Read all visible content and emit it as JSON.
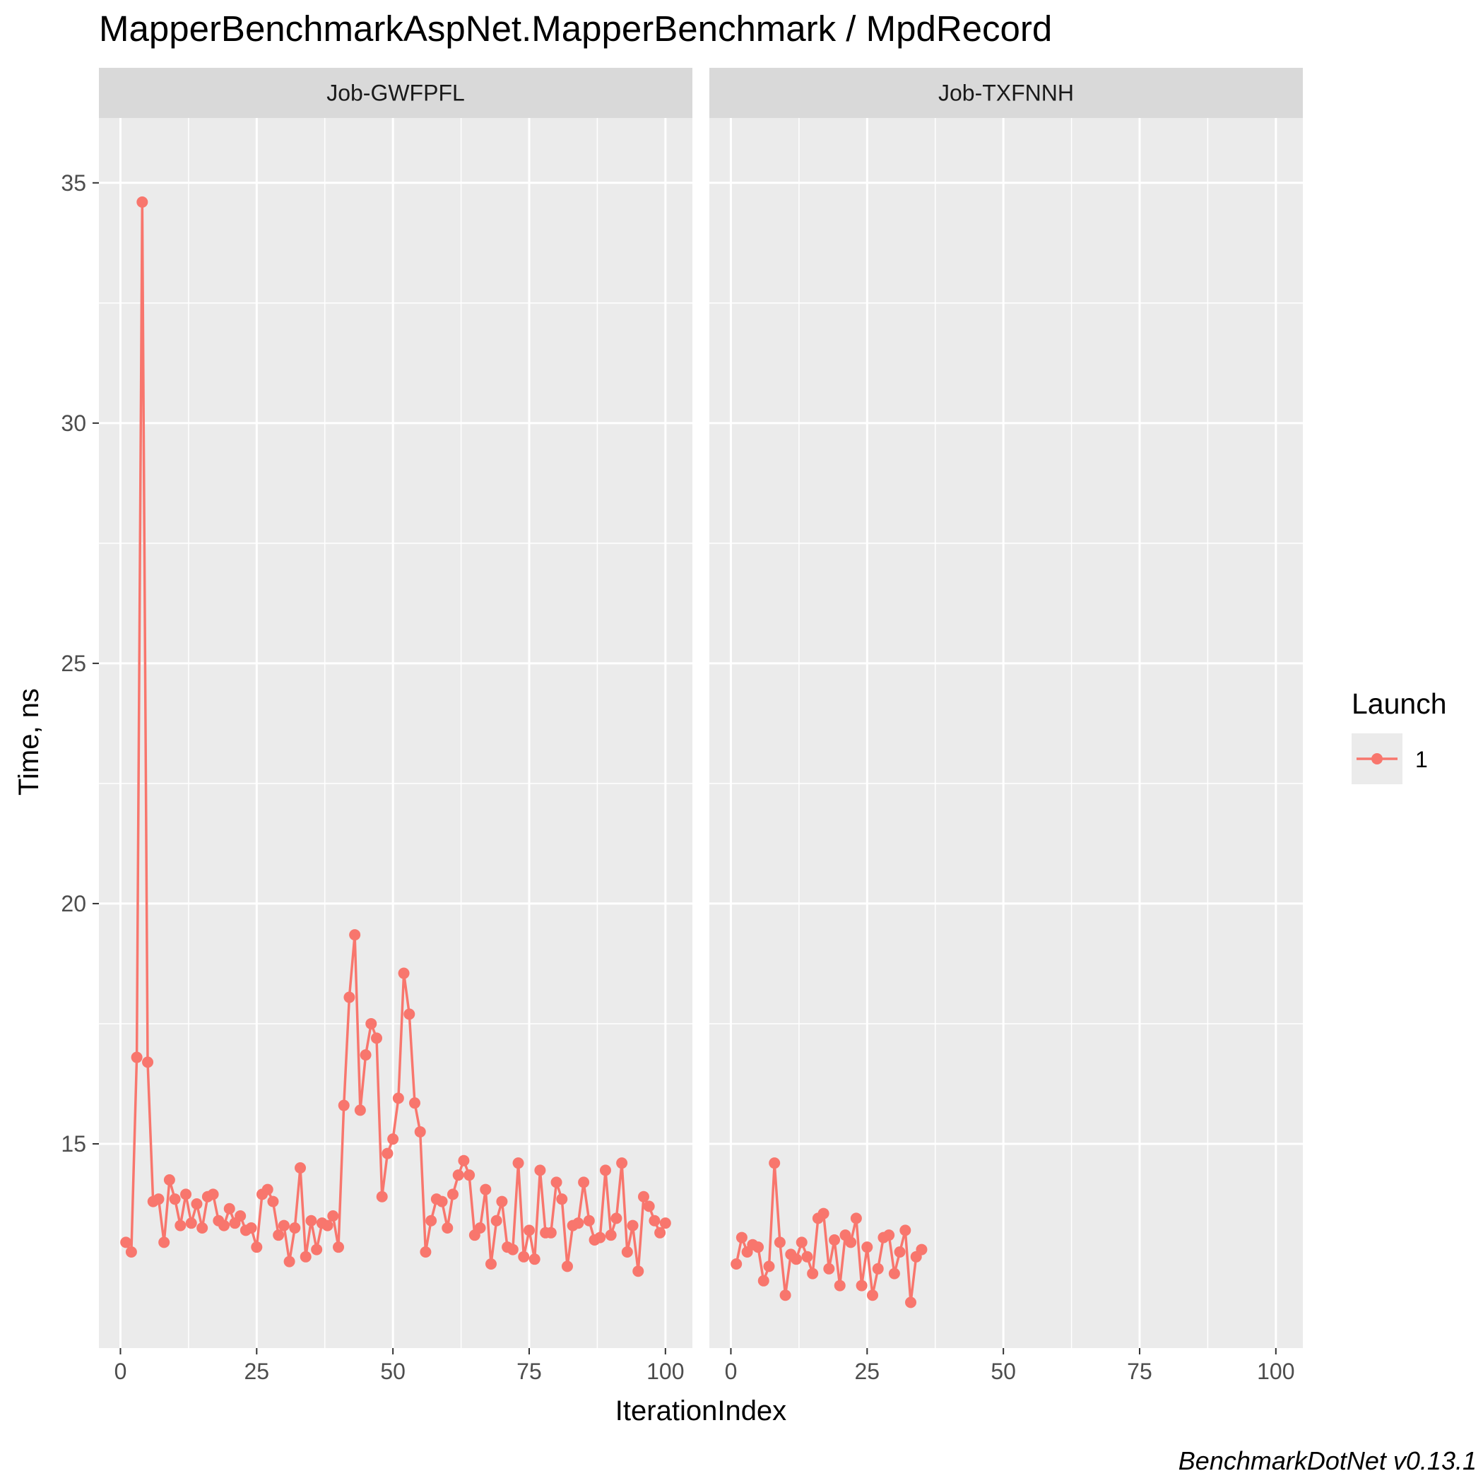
{
  "chart_data": {
    "type": "line",
    "title": "MapperBenchmarkAspNet.MapperBenchmark / MpdRecord",
    "xlabel": "IterationIndex",
    "ylabel": "Time, ns",
    "caption": "BenchmarkDotNet v0.13.1",
    "xlim": [
      -3.95,
      104.95
    ],
    "ylim": [
      10.75,
      36.35
    ],
    "x_ticks": [
      0,
      25,
      50,
      75,
      100
    ],
    "y_ticks": [
      15,
      20,
      25,
      30,
      35
    ],
    "grid": true,
    "legend": {
      "title": "Launch",
      "placement": "right",
      "entries": [
        "1"
      ]
    },
    "series_color": "#F8766D",
    "panels": [
      {
        "label": "Job-GWFPFL",
        "series": [
          {
            "name": "1",
            "x": [
              1,
              2,
              3,
              4,
              5,
              6,
              7,
              8,
              9,
              10,
              11,
              12,
              13,
              14,
              15,
              16,
              17,
              18,
              19,
              20,
              21,
              22,
              23,
              24,
              25,
              26,
              27,
              28,
              29,
              30,
              31,
              32,
              33,
              34,
              35,
              36,
              37,
              38,
              39,
              40,
              41,
              42,
              43,
              44,
              45,
              46,
              47,
              48,
              49,
              50,
              51,
              52,
              53,
              54,
              55,
              56,
              57,
              58,
              59,
              60,
              61,
              62,
              63,
              64,
              65,
              66,
              67,
              68,
              69,
              70,
              71,
              72,
              73,
              74,
              75,
              76,
              77,
              78,
              79,
              80,
              81,
              82,
              83,
              84,
              85,
              86,
              87,
              88,
              89,
              90,
              91,
              92,
              93,
              94,
              95,
              96,
              97,
              98,
              99,
              100
            ],
            "y": [
              12.95,
              12.75,
              16.8,
              34.6,
              16.7,
              13.8,
              13.85,
              12.95,
              14.25,
              13.85,
              13.3,
              13.95,
              13.35,
              13.75,
              13.25,
              13.9,
              13.95,
              13.4,
              13.3,
              13.65,
              13.35,
              13.5,
              13.2,
              13.25,
              12.85,
              13.95,
              14.05,
              13.8,
              13.1,
              13.3,
              12.55,
              13.25,
              14.5,
              12.65,
              13.4,
              12.8,
              13.35,
              13.3,
              13.5,
              12.85,
              15.8,
              18.05,
              19.35,
              15.7,
              16.85,
              17.5,
              17.2,
              13.9,
              14.8,
              15.1,
              15.95,
              18.55,
              17.7,
              15.85,
              15.25,
              12.75,
              13.4,
              13.85,
              13.8,
              13.25,
              13.95,
              14.35,
              14.65,
              14.35,
              13.1,
              13.25,
              14.05,
              12.5,
              13.4,
              13.8,
              12.85,
              12.8,
              14.6,
              12.65,
              13.2,
              12.6,
              14.45,
              13.15,
              13.15,
              14.2,
              13.85,
              12.45,
              13.3,
              13.35,
              14.2,
              13.4,
              13.0,
              13.05,
              14.45,
              13.1,
              13.45,
              14.6,
              12.75,
              13.3,
              12.35,
              13.9,
              13.7,
              13.4,
              13.15,
              13.35
            ]
          }
        ]
      },
      {
        "label": "Job-TXFNNH",
        "series": [
          {
            "name": "1",
            "x": [
              1,
              2,
              3,
              4,
              5,
              6,
              7,
              8,
              9,
              10,
              11,
              12,
              13,
              14,
              15,
              16,
              17,
              18,
              19,
              20,
              21,
              22,
              23,
              24,
              25,
              26,
              27,
              28,
              29,
              30,
              31,
              32,
              33,
              34,
              35
            ],
            "y": [
              12.5,
              13.05,
              12.75,
              12.9,
              12.85,
              12.15,
              12.45,
              14.6,
              12.95,
              11.85,
              12.7,
              12.6,
              12.95,
              12.65,
              12.3,
              13.45,
              13.55,
              12.4,
              13.0,
              12.05,
              13.1,
              12.95,
              13.45,
              12.05,
              12.85,
              11.85,
              12.4,
              13.05,
              13.1,
              12.3,
              12.75,
              13.2,
              11.7,
              12.65,
              12.8
            ]
          }
        ]
      }
    ]
  }
}
